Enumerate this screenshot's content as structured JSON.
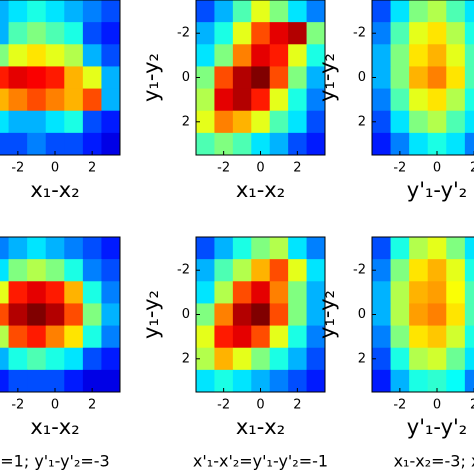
{
  "chart_data": [
    {
      "type": "heatmap",
      "colormap": "jet",
      "xlabel": "x₁-x₂",
      "xlim": [
        -3.5,
        3.5
      ],
      "xticks": [
        -2,
        0,
        2
      ],
      "ylim": [
        3.5,
        -3.5
      ],
      "values": [
        [
          0.3,
          0.35,
          0.4,
          0.35,
          0.3,
          0.25,
          0.2
        ],
        [
          0.3,
          0.45,
          0.5,
          0.45,
          0.4,
          0.2,
          0.15
        ],
        [
          0.5,
          0.6,
          0.65,
          0.6,
          0.55,
          0.3,
          0.2
        ],
        [
          0.85,
          0.9,
          0.88,
          0.85,
          0.7,
          0.6,
          0.3
        ],
        [
          0.7,
          0.75,
          0.8,
          0.75,
          0.7,
          0.8,
          0.3
        ],
        [
          0.35,
          0.3,
          0.3,
          0.35,
          0.4,
          0.2,
          0.15
        ],
        [
          0.2,
          0.2,
          0.25,
          0.2,
          0.2,
          0.15,
          0.1
        ]
      ]
    },
    {
      "type": "heatmap",
      "colormap": "jet",
      "xlabel": "x₁-x₂",
      "ylabel": "y₁-y₂",
      "xlim": [
        -3.5,
        3.5
      ],
      "xticks": [
        -2,
        0,
        2
      ],
      "ylim": [
        3.5,
        -3.5
      ],
      "yticks": [
        -2,
        0,
        2
      ],
      "values": [
        [
          0.2,
          0.3,
          0.45,
          0.6,
          0.5,
          0.35,
          0.25
        ],
        [
          0.3,
          0.4,
          0.6,
          0.8,
          0.9,
          0.95,
          0.5
        ],
        [
          0.35,
          0.5,
          0.75,
          0.9,
          0.85,
          0.6,
          0.4
        ],
        [
          0.5,
          0.8,
          0.95,
          1,
          0.8,
          0.5,
          0.3
        ],
        [
          0.55,
          0.9,
          0.95,
          0.85,
          0.6,
          0.4,
          0.25
        ],
        [
          0.6,
          0.75,
          0.7,
          0.6,
          0.45,
          0.35,
          0.2
        ],
        [
          0.45,
          0.5,
          0.45,
          0.35,
          0.3,
          0.2,
          0.15
        ]
      ]
    },
    {
      "type": "heatmap",
      "colormap": "jet",
      "xlabel": "y'₁-y'₂",
      "ylabel": "y₁-y₂",
      "xlim": [
        -3.5,
        3.5
      ],
      "xticks": [
        -2,
        0,
        2
      ],
      "ylim": [
        3.5,
        -3.5
      ],
      "yticks": [
        -2,
        0,
        2
      ],
      "values": [
        [
          0.2,
          0.35,
          0.5,
          0.55,
          0.45,
          0.35,
          0.3
        ],
        [
          0.25,
          0.45,
          0.6,
          0.65,
          0.55,
          0.4,
          0.35
        ],
        [
          0.3,
          0.5,
          0.65,
          0.7,
          0.6,
          0.45,
          0.35
        ],
        [
          0.3,
          0.5,
          0.7,
          0.75,
          0.65,
          0.45,
          0.35
        ],
        [
          0.25,
          0.45,
          0.6,
          0.65,
          0.55,
          0.4,
          0.3
        ],
        [
          0.2,
          0.35,
          0.5,
          0.55,
          0.45,
          0.35,
          0.25
        ],
        [
          0.15,
          0.25,
          0.35,
          0.4,
          0.35,
          0.25,
          0.2
        ]
      ]
    },
    {
      "type": "heatmap",
      "colormap": "jet",
      "xlabel": "x₁-x₂",
      "caption": "=1; y'₁-y'₂=-3",
      "xlim": [
        -3.5,
        3.5
      ],
      "xticks": [
        -2,
        0,
        2
      ],
      "ylim": [
        3.5,
        -3.5
      ],
      "values": [
        [
          0.25,
          0.3,
          0.35,
          0.3,
          0.25,
          0.2,
          0.15
        ],
        [
          0.35,
          0.5,
          0.55,
          0.5,
          0.4,
          0.25,
          0.2
        ],
        [
          0.6,
          0.85,
          0.9,
          0.85,
          0.7,
          0.4,
          0.25
        ],
        [
          0.8,
          0.95,
          1,
          0.95,
          0.8,
          0.5,
          0.3
        ],
        [
          0.55,
          0.8,
          0.85,
          0.75,
          0.65,
          0.4,
          0.25
        ],
        [
          0.3,
          0.4,
          0.45,
          0.4,
          0.35,
          0.2,
          0.15
        ],
        [
          0.15,
          0.2,
          0.2,
          0.2,
          0.15,
          0.1,
          0.1
        ]
      ]
    },
    {
      "type": "heatmap",
      "colormap": "jet",
      "xlabel": "x₁-x₂",
      "ylabel": "y₁-y₂",
      "caption": "x'₁-x'₂=y'₁-y'₂=-1",
      "xlim": [
        -3.5,
        3.5
      ],
      "xticks": [
        -2,
        0,
        2
      ],
      "ylim": [
        3.5,
        -3.5
      ],
      "yticks": [
        -2,
        0,
        2
      ],
      "values": [
        [
          0.2,
          0.3,
          0.4,
          0.5,
          0.55,
          0.35,
          0.25
        ],
        [
          0.3,
          0.45,
          0.55,
          0.7,
          0.8,
          0.6,
          0.35
        ],
        [
          0.35,
          0.55,
          0.8,
          0.9,
          0.75,
          0.5,
          0.3
        ],
        [
          0.5,
          0.75,
          0.95,
          1,
          0.8,
          0.5,
          0.3
        ],
        [
          0.6,
          0.85,
          0.9,
          0.8,
          0.6,
          0.4,
          0.25
        ],
        [
          0.55,
          0.7,
          0.6,
          0.5,
          0.4,
          0.3,
          0.2
        ],
        [
          0.35,
          0.4,
          0.35,
          0.3,
          0.25,
          0.2,
          0.15
        ]
      ]
    },
    {
      "type": "heatmap",
      "colormap": "jet",
      "xlabel": "y'₁-y'₂",
      "ylabel": "y₁-y₂",
      "caption": "x₁-x₂=-3; x",
      "xlim": [
        -3.5,
        3.5
      ],
      "xticks": [
        -2,
        0,
        2
      ],
      "ylim": [
        3.5,
        -3.5
      ],
      "yticks": [
        -2,
        0,
        2
      ],
      "values": [
        [
          0.2,
          0.4,
          0.55,
          0.6,
          0.5,
          0.35,
          0.3
        ],
        [
          0.25,
          0.5,
          0.65,
          0.7,
          0.6,
          0.4,
          0.35
        ],
        [
          0.3,
          0.55,
          0.7,
          0.72,
          0.62,
          0.45,
          0.35
        ],
        [
          0.3,
          0.55,
          0.72,
          0.75,
          0.65,
          0.45,
          0.35
        ],
        [
          0.25,
          0.5,
          0.65,
          0.68,
          0.58,
          0.4,
          0.3
        ],
        [
          0.2,
          0.4,
          0.55,
          0.58,
          0.48,
          0.35,
          0.25
        ],
        [
          0.15,
          0.3,
          0.4,
          0.42,
          0.38,
          0.25,
          0.2
        ]
      ]
    }
  ]
}
